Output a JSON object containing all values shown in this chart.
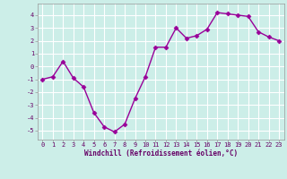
{
  "x": [
    0,
    1,
    2,
    3,
    4,
    5,
    6,
    7,
    8,
    9,
    10,
    11,
    12,
    13,
    14,
    15,
    16,
    17,
    18,
    19,
    20,
    21,
    22,
    23
  ],
  "y": [
    -1.0,
    -0.8,
    0.4,
    -0.9,
    -1.6,
    -3.6,
    -4.7,
    -5.1,
    -4.5,
    -2.5,
    -0.8,
    1.5,
    1.5,
    3.0,
    2.2,
    2.4,
    2.9,
    4.2,
    4.1,
    4.0,
    3.9,
    2.7,
    2.3,
    2.0
  ],
  "xlim": [
    -0.5,
    23.5
  ],
  "ylim": [
    -5.7,
    4.9
  ],
  "yticks": [
    -5,
    -4,
    -3,
    -2,
    -1,
    0,
    1,
    2,
    3,
    4
  ],
  "xticks": [
    0,
    1,
    2,
    3,
    4,
    5,
    6,
    7,
    8,
    9,
    10,
    11,
    12,
    13,
    14,
    15,
    16,
    17,
    18,
    19,
    20,
    21,
    22,
    23
  ],
  "xlabel": "Windchill (Refroidissement éolien,°C)",
  "line_color": "#990099",
  "marker_color": "#990099",
  "bg_color": "#cceee8",
  "grid_color": "#ffffff",
  "label_color": "#660066",
  "tick_fontsize": 5.0,
  "xlabel_fontsize": 5.5,
  "linewidth": 1.0,
  "markersize": 2.5
}
